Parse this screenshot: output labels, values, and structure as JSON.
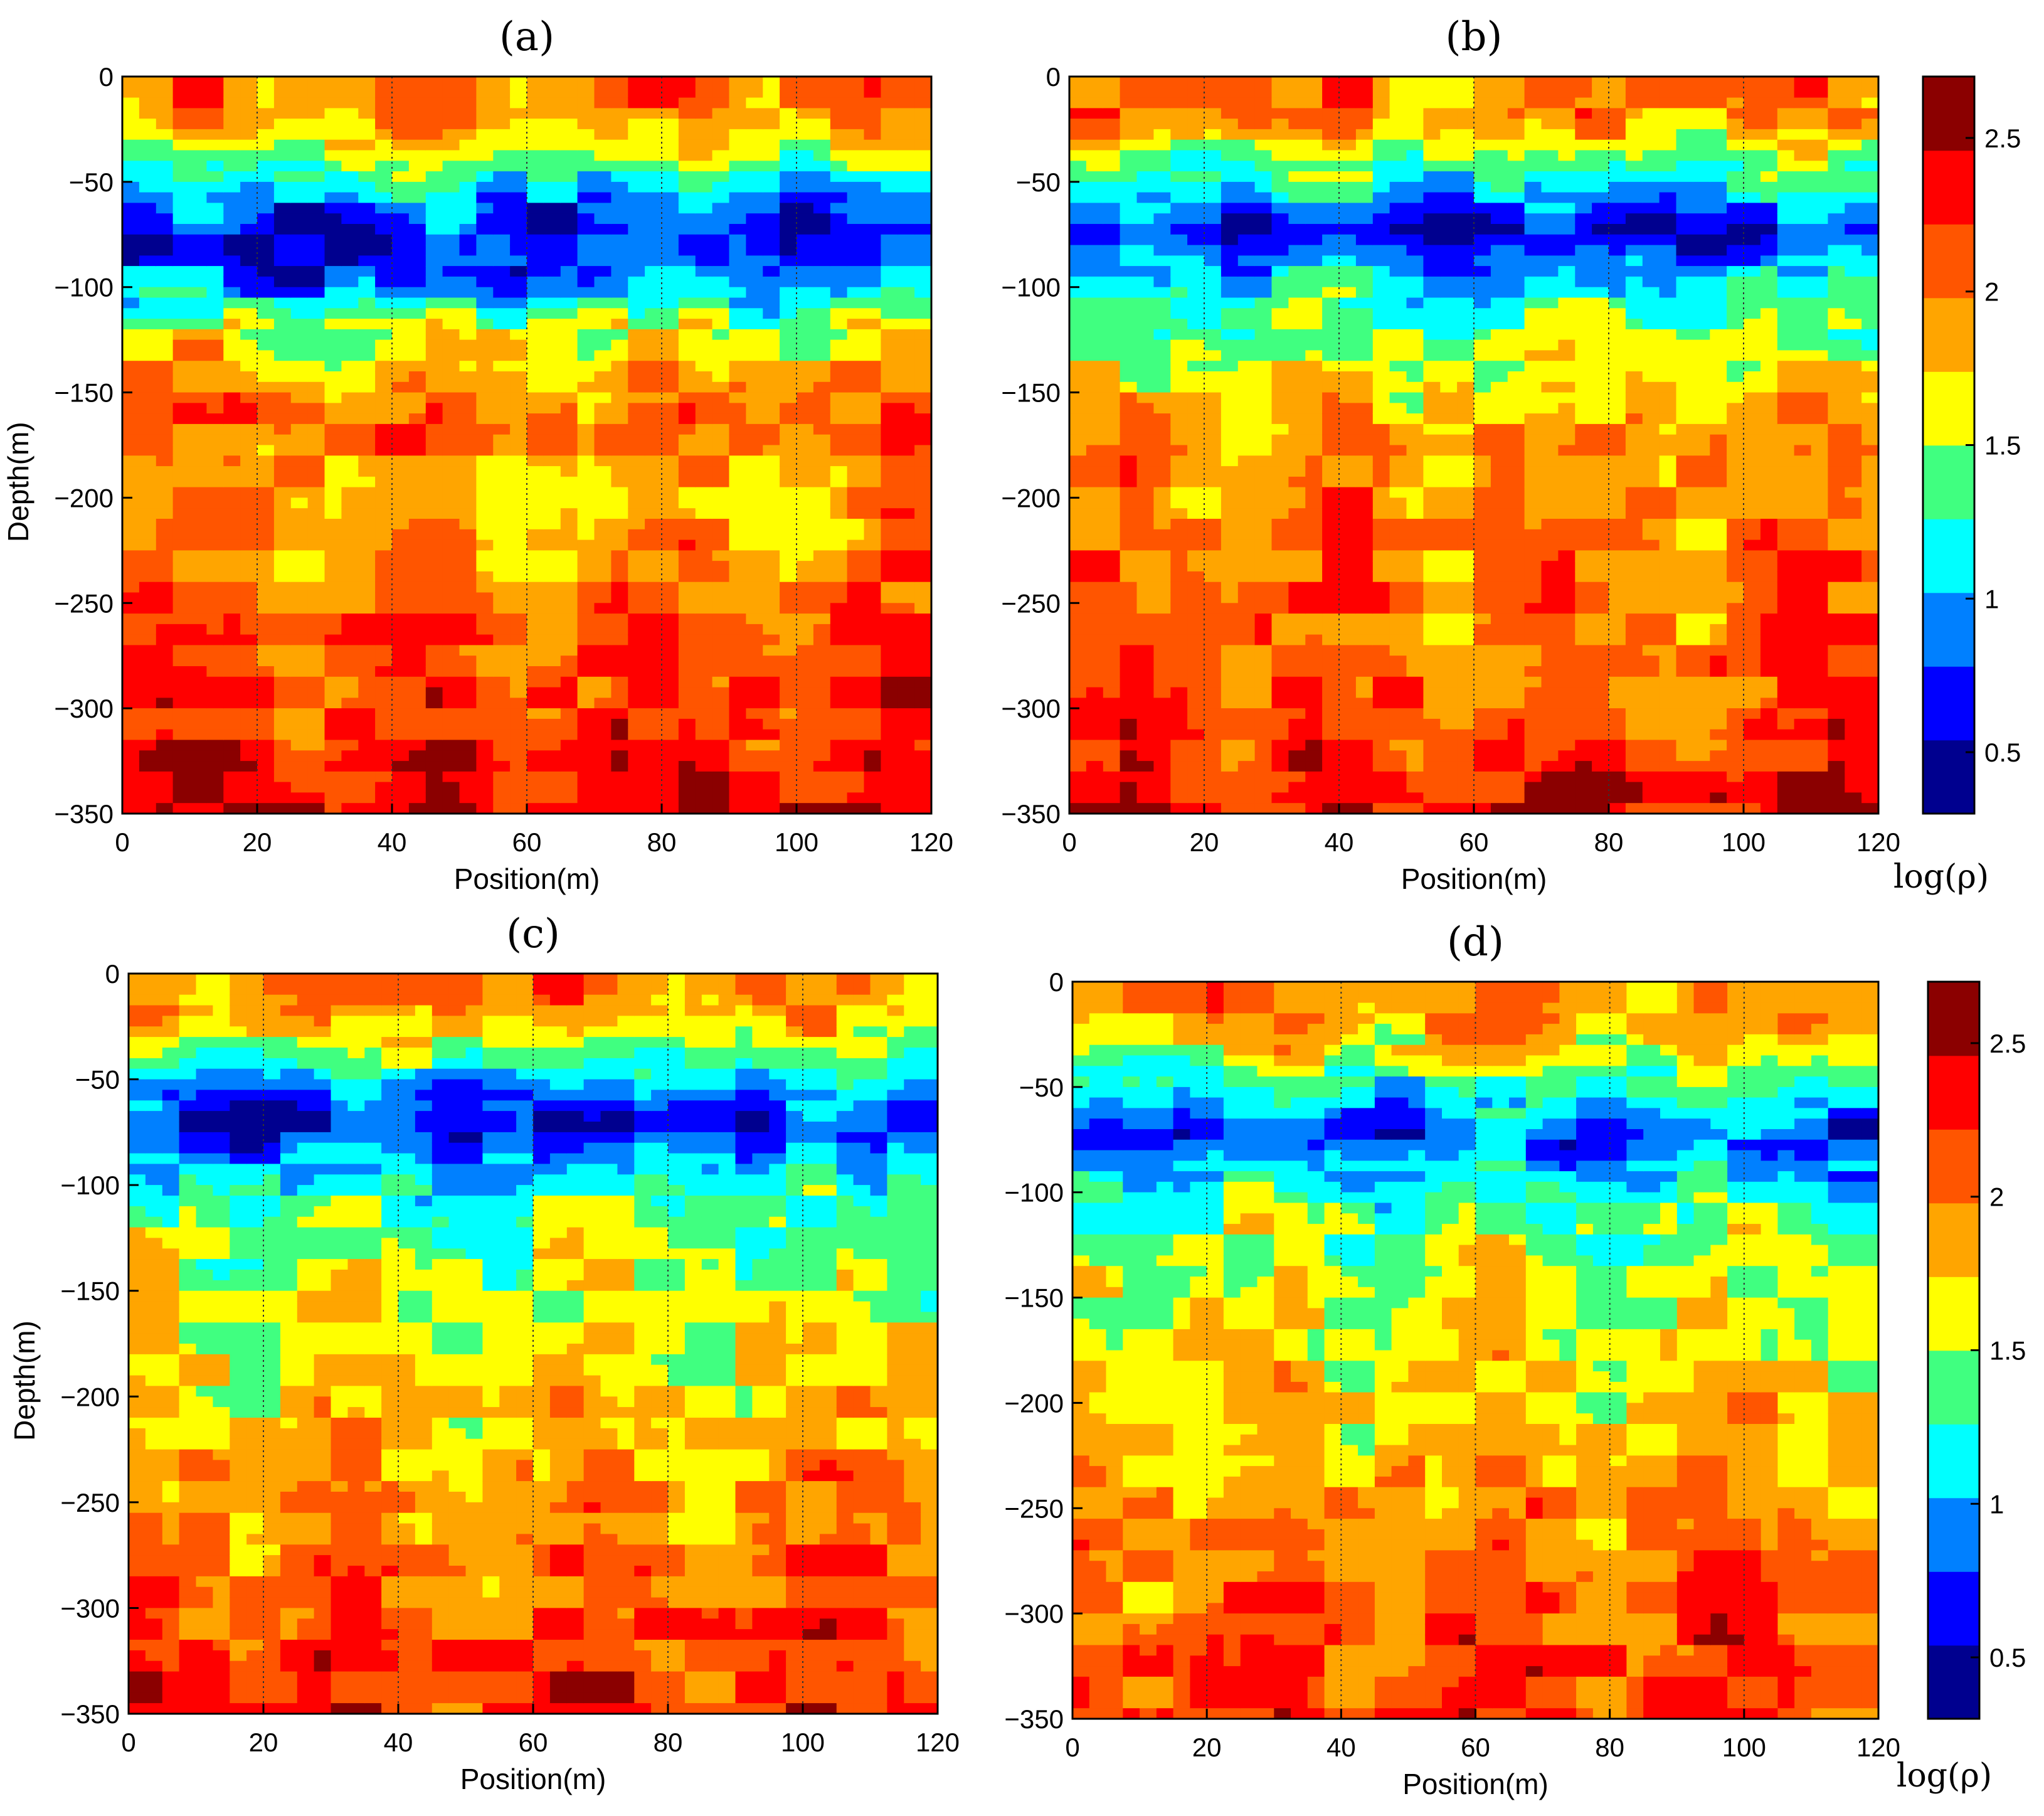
{
  "colors": {
    "levels": [
      "#00008f",
      "#0000ff",
      "#0080ff",
      "#00ffff",
      "#40ff80",
      "#ffff00",
      "#ffa500",
      "#ff5500",
      "#ff0000",
      "#8b0000"
    ],
    "axis": "#000000",
    "grid": "#333333"
  },
  "colorbar": {
    "min": 0.3,
    "max": 2.7,
    "ticks": [
      "0.5",
      "1",
      "1.5",
      "2",
      "2.5"
    ],
    "label": "log(ρ)"
  },
  "chart_data": [
    {
      "type": "heatmap",
      "title": "(a)",
      "xlabel": "Position(m)",
      "ylabel": "Depth(m)",
      "xlim": [
        0,
        120
      ],
      "ylim": [
        -350,
        0
      ],
      "xticks": [
        "0",
        "20",
        "40",
        "60",
        "80",
        "100",
        "120"
      ],
      "yticks": [
        "0",
        "-50",
        "-100",
        "-150",
        "-200",
        "-250",
        "-300",
        "-350"
      ],
      "grid": true,
      "bands": [
        {
          "depth": -10,
          "value": 2.0
        },
        {
          "depth": -30,
          "value": 1.7
        },
        {
          "depth": -45,
          "value": 1.3
        },
        {
          "depth": -60,
          "value": 0.9
        },
        {
          "depth": -80,
          "value": 0.6
        },
        {
          "depth": -100,
          "value": 0.9
        },
        {
          "depth": -120,
          "value": 1.6
        },
        {
          "depth": -160,
          "value": 2.0
        },
        {
          "depth": -200,
          "value": 1.85
        },
        {
          "depth": -250,
          "value": 2.0
        },
        {
          "depth": -300,
          "value": 2.2
        },
        {
          "depth": -340,
          "value": 2.4
        }
      ]
    },
    {
      "type": "heatmap",
      "title": "(b)",
      "xlabel": "Position(m)",
      "ylabel": "",
      "xlim": [
        0,
        120
      ],
      "ylim": [
        -350,
        0
      ],
      "xticks": [
        "0",
        "20",
        "40",
        "60",
        "80",
        "100",
        "120"
      ],
      "yticks": [
        "0",
        "-50",
        "-100",
        "-150",
        "-200",
        "-250",
        "-300",
        "-350"
      ],
      "grid": true,
      "bands": [
        {
          "depth": -10,
          "value": 2.0
        },
        {
          "depth": -30,
          "value": 1.75
        },
        {
          "depth": -50,
          "value": 1.2
        },
        {
          "depth": -75,
          "value": 0.6
        },
        {
          "depth": -95,
          "value": 1.1
        },
        {
          "depth": -130,
          "value": 1.5
        },
        {
          "depth": -170,
          "value": 1.9
        },
        {
          "depth": -220,
          "value": 2.0
        },
        {
          "depth": -270,
          "value": 2.05
        },
        {
          "depth": -320,
          "value": 2.2
        },
        {
          "depth": -345,
          "value": 2.35
        }
      ]
    },
    {
      "type": "heatmap",
      "title": "(c)",
      "xlabel": "Position(m)",
      "ylabel": "Depth(m)",
      "xlim": [
        0,
        120
      ],
      "ylim": [
        -350,
        0
      ],
      "xticks": [
        "0",
        "20",
        "40",
        "60",
        "80",
        "100",
        "120"
      ],
      "yticks": [
        "0",
        "-50",
        "-100",
        "-150",
        "-200",
        "-250",
        "-300",
        "-350"
      ],
      "grid": true,
      "bands": [
        {
          "depth": -10,
          "value": 2.0
        },
        {
          "depth": -30,
          "value": 1.6
        },
        {
          "depth": -50,
          "value": 1.1
        },
        {
          "depth": -70,
          "value": 0.6
        },
        {
          "depth": -100,
          "value": 1.2
        },
        {
          "depth": -140,
          "value": 1.55
        },
        {
          "depth": -190,
          "value": 1.7
        },
        {
          "depth": -240,
          "value": 1.9
        },
        {
          "depth": -290,
          "value": 2.05
        },
        {
          "depth": -330,
          "value": 2.25
        }
      ]
    },
    {
      "type": "heatmap",
      "title": "(d)",
      "xlabel": "Position(m)",
      "ylabel": "",
      "xlim": [
        0,
        120
      ],
      "ylim": [
        -350,
        0
      ],
      "xticks": [
        "0",
        "20",
        "40",
        "60",
        "80",
        "100",
        "120"
      ],
      "yticks": [
        "0",
        "-50",
        "-100",
        "-150",
        "-200",
        "-250",
        "-300",
        "-350"
      ],
      "grid": true,
      "bands": [
        {
          "depth": -10,
          "value": 2.0
        },
        {
          "depth": -30,
          "value": 1.75
        },
        {
          "depth": -50,
          "value": 1.2
        },
        {
          "depth": -75,
          "value": 0.7
        },
        {
          "depth": -100,
          "value": 1.3
        },
        {
          "depth": -140,
          "value": 1.6
        },
        {
          "depth": -190,
          "value": 1.7
        },
        {
          "depth": -240,
          "value": 1.9
        },
        {
          "depth": -290,
          "value": 2.05
        },
        {
          "depth": -335,
          "value": 2.25
        }
      ]
    }
  ]
}
